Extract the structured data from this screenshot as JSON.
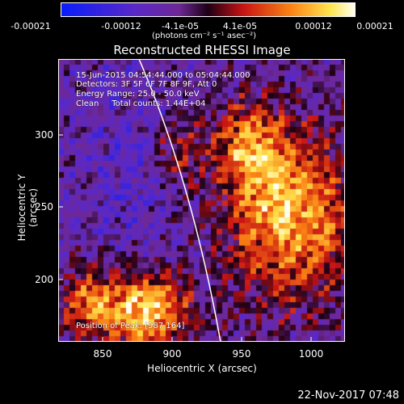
{
  "colorbar": {
    "ticks": [
      "-0.00021",
      "-0.00012",
      "-4.1e-05",
      "4.1e-05",
      "0.00012",
      "0.00021"
    ],
    "unit": "(photons cm⁻² s⁻¹ asec⁻²)"
  },
  "title": "Reconstructed RHESSI Image",
  "annotations": {
    "time": "15-Jun-2015 04:54:44.000 to 05:04:44.000",
    "detectors": "Detectors: 3F 5F 6F 7F 8F 9F, Att 0",
    "energy": "Energy Range: 25.0 - 50.0 keV",
    "clean": "Clean     Total counts: 1.44E+04",
    "peak": "Position of Peak: [987,164]"
  },
  "axes": {
    "xlabel": "Heliocentric X (arcsec)",
    "ylabel": "Heliocentric Y (arcsec)",
    "xticks": [
      "850",
      "900",
      "950",
      "1000"
    ],
    "yticks": [
      "300",
      "250",
      "200"
    ]
  },
  "footer_date": "22-Nov-2017 07:48"
}
